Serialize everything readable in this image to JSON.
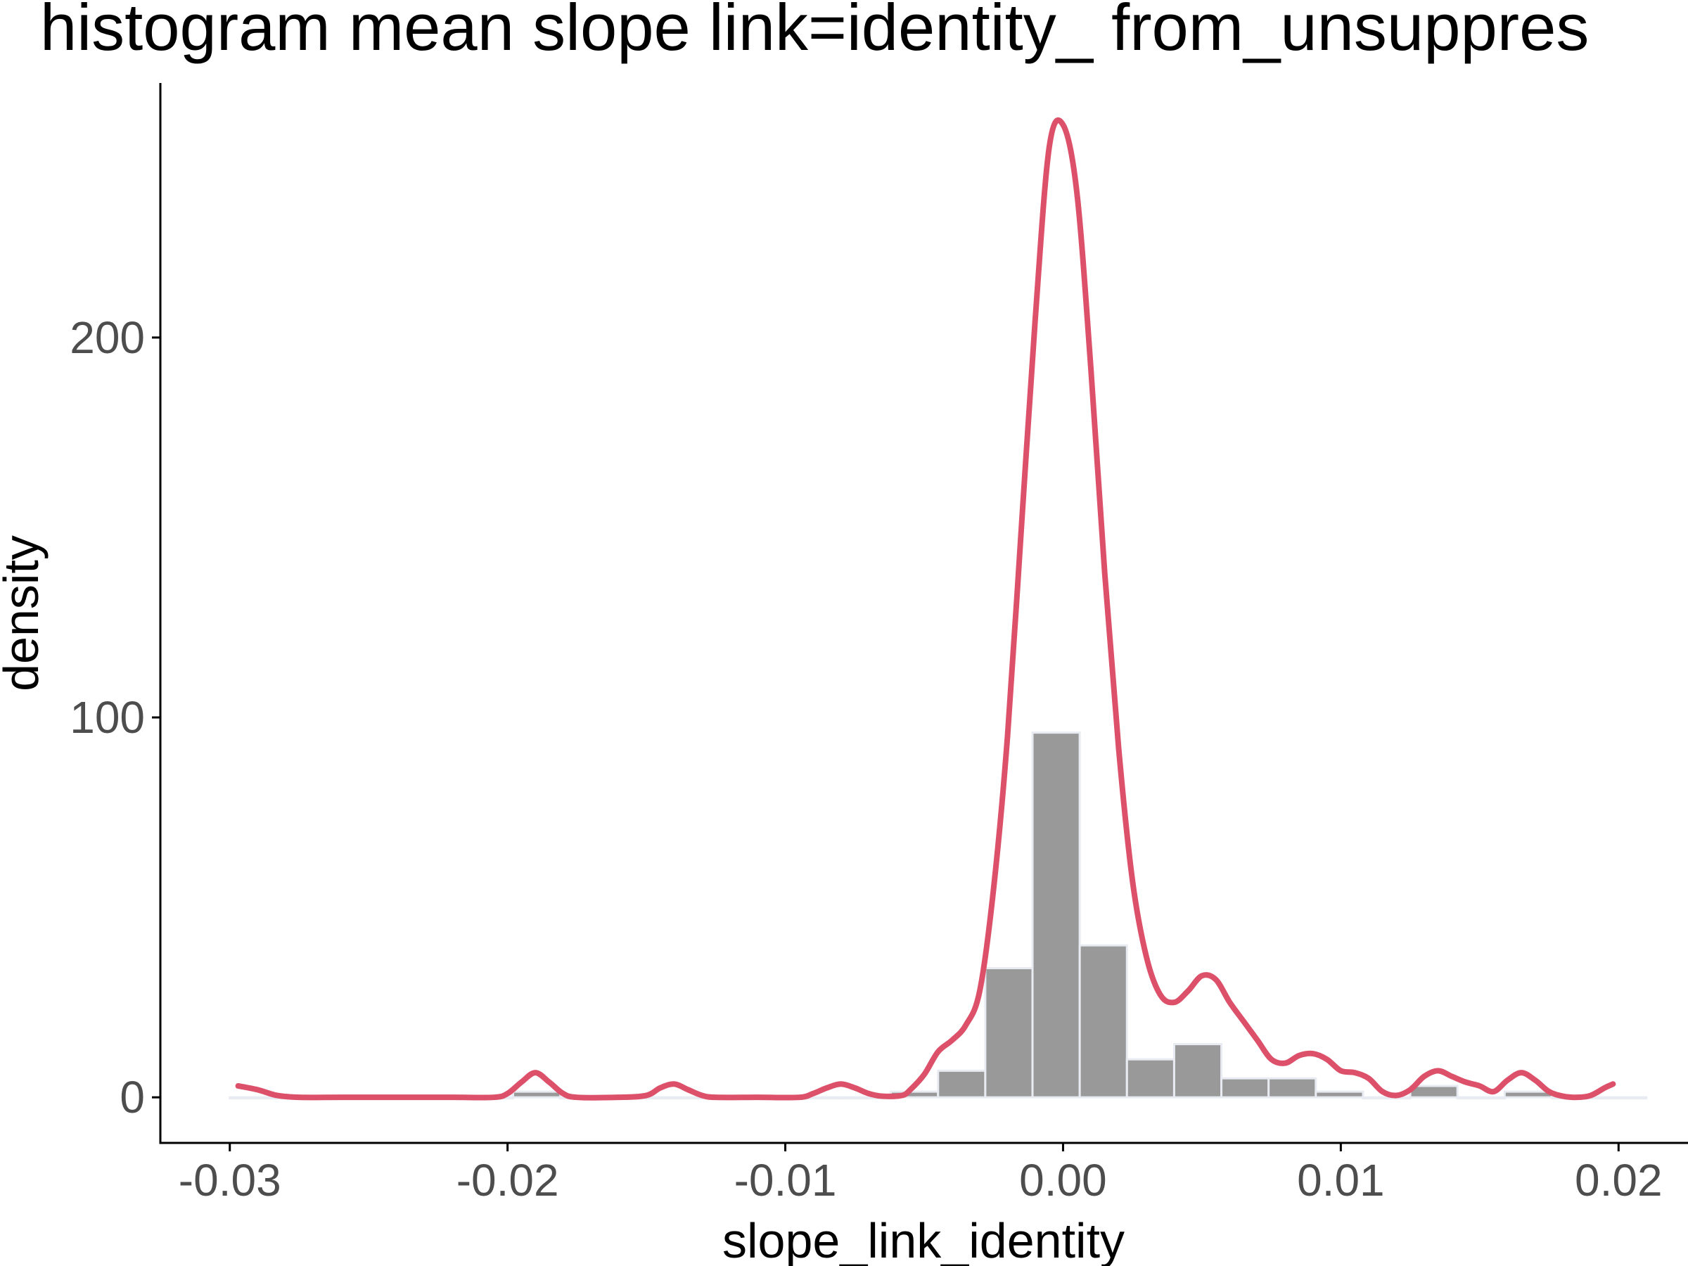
{
  "chart_data": {
    "type": "bar",
    "title": "histogram mean slope link=identity_ from_unsuppres",
    "xlabel": "slope_link_identity",
    "ylabel": "density",
    "xlim": [
      -0.0325,
      0.0225
    ],
    "ylim": [
      -12,
      267
    ],
    "x_ticks": [
      -0.03,
      -0.02,
      -0.01,
      0.0,
      0.01,
      0.02
    ],
    "x_tick_labels": [
      "-0.03",
      "-0.02",
      "-0.01",
      "0.00",
      "0.01",
      "0.02"
    ],
    "y_ticks": [
      0,
      100,
      200
    ],
    "y_tick_labels": [
      "0",
      "100",
      "200"
    ],
    "grid": false,
    "legend": "none",
    "colors": {
      "bar_fill": "#999999",
      "bar_outline": "#e8ecf2",
      "density_line": "#dc5069",
      "axis": "#000000",
      "tick_text": "#4d4d4d"
    },
    "series": [
      {
        "type": "histogram",
        "bin_width": 0.0017,
        "bins": [
          {
            "x0": -0.03,
            "x1": -0.0283,
            "density": 0
          },
          {
            "x0": -0.0283,
            "x1": -0.0266,
            "density": 0
          },
          {
            "x0": -0.0266,
            "x1": -0.0249,
            "density": 0
          },
          {
            "x0": -0.0249,
            "x1": -0.0232,
            "density": 0
          },
          {
            "x0": -0.0232,
            "x1": -0.0215,
            "density": 0
          },
          {
            "x0": -0.0215,
            "x1": -0.0198,
            "density": 0
          },
          {
            "x0": -0.0198,
            "x1": -0.0181,
            "density": 1.5
          },
          {
            "x0": -0.0181,
            "x1": -0.0164,
            "density": 0
          },
          {
            "x0": -0.0164,
            "x1": -0.0147,
            "density": 0
          },
          {
            "x0": -0.0147,
            "x1": -0.013,
            "density": 0
          },
          {
            "x0": -0.013,
            "x1": -0.0113,
            "density": 0
          },
          {
            "x0": -0.0113,
            "x1": -0.0096,
            "density": 0
          },
          {
            "x0": -0.0096,
            "x1": -0.0079,
            "density": 0
          },
          {
            "x0": -0.0079,
            "x1": -0.0062,
            "density": 0
          },
          {
            "x0": -0.0062,
            "x1": -0.0045,
            "density": 1.5
          },
          {
            "x0": -0.0045,
            "x1": -0.0028,
            "density": 7
          },
          {
            "x0": -0.0028,
            "x1": -0.0011,
            "density": 34
          },
          {
            "x0": -0.0011,
            "x1": 0.0006,
            "density": 96
          },
          {
            "x0": 0.0006,
            "x1": 0.0023,
            "density": 40
          },
          {
            "x0": 0.0023,
            "x1": 0.004,
            "density": 10
          },
          {
            "x0": 0.004,
            "x1": 0.0057,
            "density": 14
          },
          {
            "x0": 0.0057,
            "x1": 0.0074,
            "density": 5
          },
          {
            "x0": 0.0074,
            "x1": 0.0091,
            "density": 5
          },
          {
            "x0": 0.0091,
            "x1": 0.0108,
            "density": 1.5
          },
          {
            "x0": 0.0108,
            "x1": 0.0125,
            "density": 0
          },
          {
            "x0": 0.0125,
            "x1": 0.0142,
            "density": 3
          },
          {
            "x0": 0.0142,
            "x1": 0.0159,
            "density": 0
          },
          {
            "x0": 0.0159,
            "x1": 0.0176,
            "density": 1.5
          },
          {
            "x0": 0.0176,
            "x1": 0.0193,
            "density": 0
          },
          {
            "x0": 0.0193,
            "x1": 0.021,
            "density": 0
          }
        ]
      },
      {
        "type": "line",
        "points": [
          [
            -0.0297,
            3
          ],
          [
            -0.029,
            2
          ],
          [
            -0.0283,
            0.5
          ],
          [
            -0.0275,
            0
          ],
          [
            -0.026,
            0
          ],
          [
            -0.024,
            0
          ],
          [
            -0.022,
            0
          ],
          [
            -0.0205,
            0
          ],
          [
            -0.02,
            1
          ],
          [
            -0.0195,
            4
          ],
          [
            -0.019,
            6.5
          ],
          [
            -0.0185,
            4
          ],
          [
            -0.018,
            1
          ],
          [
            -0.0175,
            0
          ],
          [
            -0.016,
            0
          ],
          [
            -0.015,
            0.5
          ],
          [
            -0.0145,
            2.5
          ],
          [
            -0.014,
            3.5
          ],
          [
            -0.0135,
            2
          ],
          [
            -0.013,
            0.5
          ],
          [
            -0.0125,
            0
          ],
          [
            -0.011,
            0
          ],
          [
            -0.0095,
            0
          ],
          [
            -0.009,
            1
          ],
          [
            -0.0085,
            2.5
          ],
          [
            -0.008,
            3.5
          ],
          [
            -0.0075,
            2.5
          ],
          [
            -0.007,
            1
          ],
          [
            -0.0065,
            0.3
          ],
          [
            -0.0058,
            0.5
          ],
          [
            -0.0055,
            2
          ],
          [
            -0.005,
            6
          ],
          [
            -0.0045,
            12
          ],
          [
            -0.004,
            15
          ],
          [
            -0.0035,
            19
          ],
          [
            -0.003,
            28
          ],
          [
            -0.0025,
            55
          ],
          [
            -0.002,
            95
          ],
          [
            -0.0015,
            150
          ],
          [
            -0.001,
            205
          ],
          [
            -0.0005,
            250
          ],
          [
            0.0,
            256
          ],
          [
            0.0005,
            238
          ],
          [
            0.001,
            192
          ],
          [
            0.0015,
            138
          ],
          [
            0.002,
            92
          ],
          [
            0.0025,
            57
          ],
          [
            0.003,
            37
          ],
          [
            0.0035,
            27
          ],
          [
            0.004,
            25
          ],
          [
            0.0045,
            28
          ],
          [
            0.005,
            32
          ],
          [
            0.0055,
            31
          ],
          [
            0.006,
            25
          ],
          [
            0.0065,
            20
          ],
          [
            0.007,
            15
          ],
          [
            0.0075,
            10
          ],
          [
            0.008,
            9
          ],
          [
            0.0085,
            11
          ],
          [
            0.009,
            11.5
          ],
          [
            0.0095,
            10
          ],
          [
            0.01,
            7
          ],
          [
            0.0105,
            6.5
          ],
          [
            0.011,
            5
          ],
          [
            0.0115,
            1.5
          ],
          [
            0.012,
            0.5
          ],
          [
            0.0125,
            2
          ],
          [
            0.013,
            5.5
          ],
          [
            0.0135,
            7
          ],
          [
            0.014,
            5.5
          ],
          [
            0.0145,
            4
          ],
          [
            0.015,
            3
          ],
          [
            0.0155,
            1.5
          ],
          [
            0.016,
            4.5
          ],
          [
            0.0165,
            6.5
          ],
          [
            0.017,
            4.5
          ],
          [
            0.0175,
            1.5
          ],
          [
            0.018,
            0.3
          ],
          [
            0.0185,
            0
          ],
          [
            0.019,
            0.5
          ],
          [
            0.0195,
            2.5
          ],
          [
            0.0198,
            3.5
          ]
        ]
      }
    ]
  }
}
